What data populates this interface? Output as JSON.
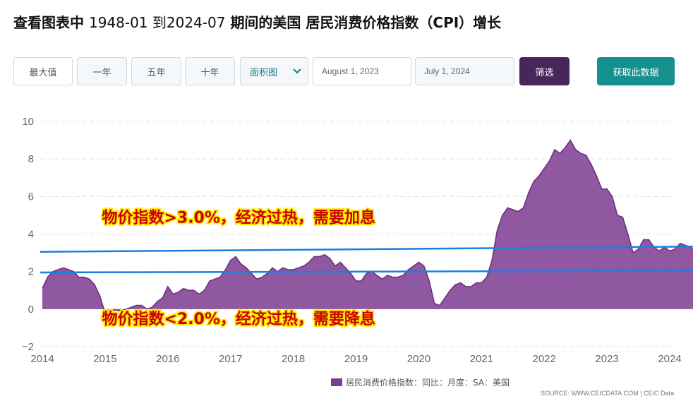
{
  "header": {
    "title_prefix": "查看图表中",
    "title_range": "1948-01 到2024-07",
    "title_suffix": "期间的美国 居民消费价格指数（CPI）增长"
  },
  "toolbar": {
    "max_label": "最大值",
    "one_year_label": "一年",
    "five_year_label": "五年",
    "ten_year_label": "十年",
    "chart_type_selected": "面积图",
    "start_date": "August 1, 2023",
    "end_date": "July 1, 2024",
    "filter_label": "筛选",
    "get_data_label": "获取此数据"
  },
  "colors": {
    "area_fill": "#8a4f9c",
    "area_stroke": "#6c2c7f",
    "trend_line": "#1a7fe0",
    "annotation_text": "#cc0000",
    "annotation_outline": "#ffea00",
    "filter_button": "#45275a",
    "get_data_button": "#168f8f"
  },
  "chart_data": {
    "type": "area",
    "ylim": [
      -2,
      10
    ],
    "y_ticks": [
      "10",
      "8",
      "6",
      "4",
      "2",
      "0",
      "−2"
    ],
    "x_ticks": [
      "2014",
      "2015",
      "2016",
      "2017",
      "2018",
      "2019",
      "2020",
      "2021",
      "2022",
      "2023",
      "2024"
    ],
    "grid": true,
    "legend_position": "bottom",
    "series": [
      {
        "name": "居民消费价格指数：同比：月度：SA：美国",
        "x": [
          2014.0,
          2014.083,
          2014.167,
          2014.25,
          2014.333,
          2014.417,
          2014.5,
          2014.583,
          2014.667,
          2014.75,
          2014.833,
          2014.917,
          2015.0,
          2015.083,
          2015.167,
          2015.25,
          2015.333,
          2015.417,
          2015.5,
          2015.583,
          2015.667,
          2015.75,
          2015.833,
          2015.917,
          2016.0,
          2016.083,
          2016.167,
          2016.25,
          2016.333,
          2016.417,
          2016.5,
          2016.583,
          2016.667,
          2016.75,
          2016.833,
          2016.917,
          2017.0,
          2017.083,
          2017.167,
          2017.25,
          2017.333,
          2017.417,
          2017.5,
          2017.583,
          2017.667,
          2017.75,
          2017.833,
          2017.917,
          2018.0,
          2018.083,
          2018.167,
          2018.25,
          2018.333,
          2018.417,
          2018.5,
          2018.583,
          2018.667,
          2018.75,
          2018.833,
          2018.917,
          2019.0,
          2019.083,
          2019.167,
          2019.25,
          2019.333,
          2019.417,
          2019.5,
          2019.583,
          2019.667,
          2019.75,
          2019.833,
          2019.917,
          2020.0,
          2020.083,
          2020.167,
          2020.25,
          2020.333,
          2020.417,
          2020.5,
          2020.583,
          2020.667,
          2020.75,
          2020.833,
          2020.917,
          2021.0,
          2021.083,
          2021.167,
          2021.25,
          2021.333,
          2021.417,
          2021.5,
          2021.583,
          2021.667,
          2021.75,
          2021.833,
          2021.917,
          2022.0,
          2022.083,
          2022.167,
          2022.25,
          2022.333,
          2022.417,
          2022.5,
          2022.583,
          2022.667,
          2022.75,
          2022.833,
          2022.917,
          2023.0,
          2023.083,
          2023.167,
          2023.25,
          2023.333,
          2023.417,
          2023.5,
          2023.583,
          2023.667,
          2023.75,
          2023.833,
          2023.917,
          2024.0,
          2024.083,
          2024.167,
          2024.25,
          2024.333,
          2024.417,
          2024.5
        ],
        "values": [
          1.1,
          1.7,
          2.0,
          2.1,
          2.2,
          2.1,
          2.0,
          1.7,
          1.7,
          1.6,
          1.3,
          0.7,
          -0.2,
          -0.1,
          -0.05,
          -0.1,
          0.0,
          0.1,
          0.2,
          0.2,
          0.0,
          0.1,
          0.4,
          0.6,
          1.2,
          0.8,
          0.9,
          1.1,
          1.0,
          1.0,
          0.8,
          1.0,
          1.5,
          1.6,
          1.7,
          2.1,
          2.6,
          2.8,
          2.4,
          2.2,
          1.9,
          1.6,
          1.7,
          1.9,
          2.2,
          2.0,
          2.2,
          2.1,
          2.1,
          2.2,
          2.3,
          2.5,
          2.8,
          2.8,
          2.9,
          2.7,
          2.3,
          2.5,
          2.2,
          1.9,
          1.5,
          1.5,
          1.9,
          2.0,
          1.8,
          1.6,
          1.8,
          1.7,
          1.7,
          1.8,
          2.1,
          2.3,
          2.5,
          2.3,
          1.5,
          0.3,
          0.2,
          0.6,
          1.0,
          1.3,
          1.4,
          1.2,
          1.2,
          1.4,
          1.4,
          1.7,
          2.6,
          4.2,
          5.0,
          5.4,
          5.3,
          5.2,
          5.4,
          6.2,
          6.8,
          7.1,
          7.5,
          7.9,
          8.5,
          8.3,
          8.6,
          9.0,
          8.5,
          8.3,
          8.2,
          7.7,
          7.1,
          6.4,
          6.4,
          6.0,
          5.0,
          4.9,
          4.0,
          3.0,
          3.2,
          3.7,
          3.7,
          3.3,
          3.1,
          3.3,
          3.1,
          3.2,
          3.5,
          3.4,
          3.3,
          3.0,
          2.9
        ]
      }
    ],
    "trend_lines": [
      {
        "x": [
          2014.0,
          2024.3
        ],
        "y": [
          3.05,
          3.35
        ]
      },
      {
        "x": [
          2014.0,
          2024.3
        ],
        "y": [
          1.95,
          2.05
        ]
      }
    ],
    "annotations": [
      {
        "text": "物价指数>3.0%，经济过热，需要加息",
        "x": 2014.95,
        "y": 4.6
      },
      {
        "text": "物价指数<2.0%，经济过热，需要降息",
        "x": 2014.95,
        "y": -0.8
      }
    ]
  },
  "footer": {
    "source": "SOURCE: WWW.CEICDATA.COM | CEIC Data"
  }
}
